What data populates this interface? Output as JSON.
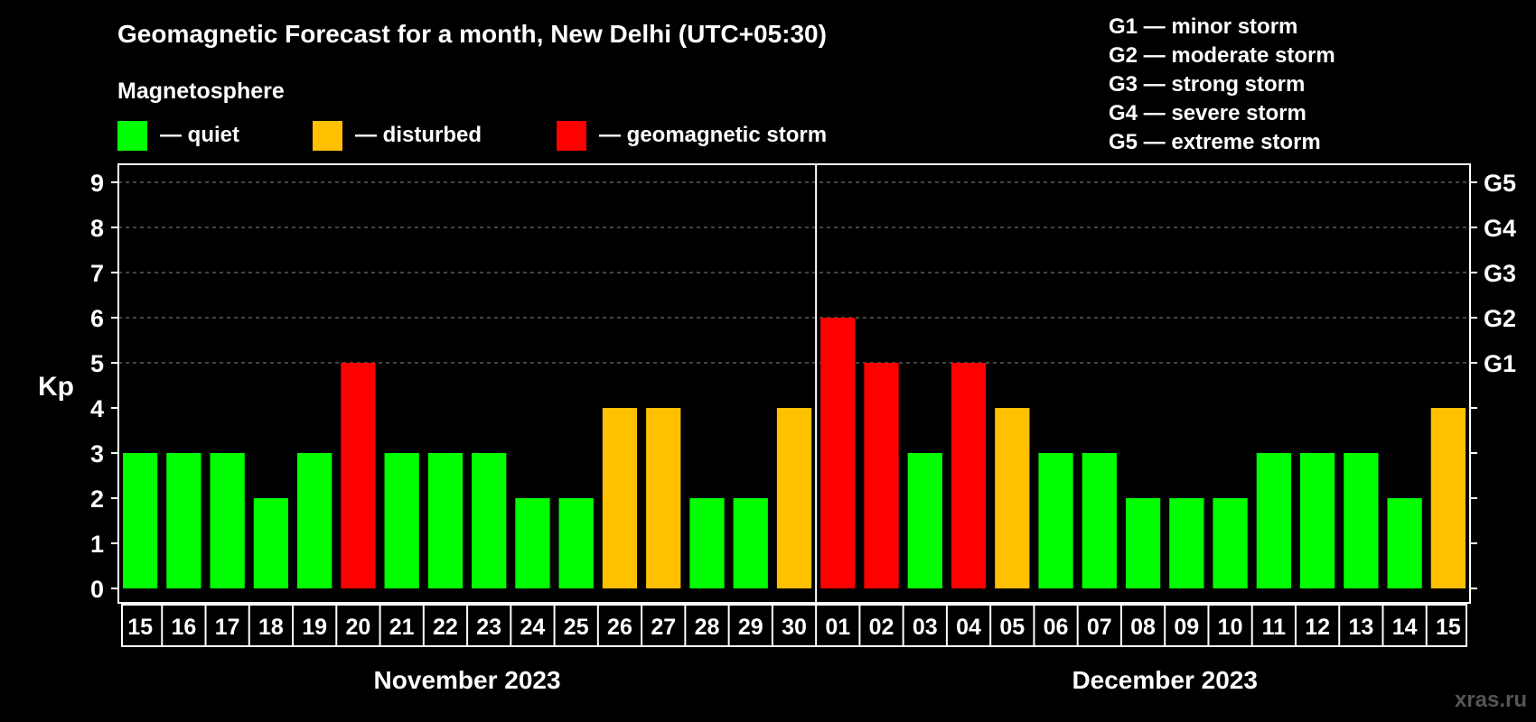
{
  "chart_data": {
    "type": "bar",
    "title": "Geomagnetic Forecast for a month, New Delhi (UTC+05:30)",
    "subtitle": "Magnetosphere",
    "ylabel": "Kp",
    "ylim": [
      0,
      9
    ],
    "yticks": [
      "0",
      "1",
      "2",
      "3",
      "4",
      "5",
      "6",
      "7",
      "8",
      "9"
    ],
    "right_axis": [
      {
        "kp": 5,
        "label": "G1"
      },
      {
        "kp": 6,
        "label": "G2"
      },
      {
        "kp": 7,
        "label": "G3"
      },
      {
        "kp": 8,
        "label": "G4"
      },
      {
        "kp": 9,
        "label": "G5"
      }
    ],
    "legend": [
      {
        "label": "— quiet",
        "color": "#00ff00"
      },
      {
        "label": "— disturbed",
        "color": "#ffc000"
      },
      {
        "label": "— geomagnetic storm",
        "color": "#ff0000"
      }
    ],
    "storm_scale": [
      "G1 — minor storm",
      "G2 — moderate storm",
      "G3 — strong storm",
      "G4 — severe storm",
      "G5 — extreme storm"
    ],
    "months": [
      {
        "label": "November 2023",
        "start": 0,
        "end": 15
      },
      {
        "label": "December 2023",
        "start": 16,
        "end": 31
      }
    ],
    "categories": [
      "15",
      "16",
      "17",
      "18",
      "19",
      "20",
      "21",
      "22",
      "23",
      "24",
      "25",
      "26",
      "27",
      "28",
      "29",
      "30",
      "01",
      "02",
      "03",
      "04",
      "05",
      "06",
      "07",
      "08",
      "09",
      "10",
      "11",
      "12",
      "13",
      "14",
      "15"
    ],
    "values": [
      3,
      3,
      3,
      2,
      3,
      5,
      3,
      3,
      3,
      2,
      2,
      4,
      4,
      2,
      2,
      4,
      6,
      5,
      3,
      5,
      4,
      3,
      3,
      2,
      2,
      2,
      3,
      3,
      3,
      2,
      4
    ],
    "colors": {
      "quiet": "#00ff00",
      "disturbed": "#ffc000",
      "storm": "#ff0000"
    }
  },
  "watermark": "xras.ru"
}
